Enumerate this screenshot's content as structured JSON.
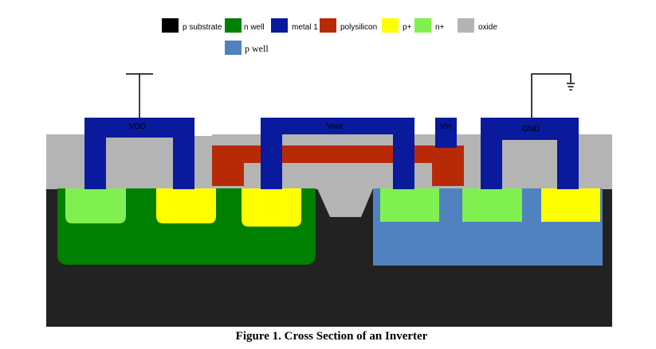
{
  "legend": {
    "items": [
      {
        "key": "p_substrate",
        "label": "p substrate",
        "color": "#000000"
      },
      {
        "key": "n_well",
        "label": "n well",
        "color": "#008000"
      },
      {
        "key": "metal1",
        "label": "metal 1",
        "color": "#0a1a9c"
      },
      {
        "key": "polysilicon",
        "label": "polysilicon",
        "color": "#b82a06"
      },
      {
        "key": "p_plus",
        "label": "p+",
        "color": "#ffff00"
      },
      {
        "key": "n_plus",
        "label": "n+",
        "color": "#80f050"
      },
      {
        "key": "oxide",
        "label": "oxide",
        "color": "#b4b4b4"
      },
      {
        "key": "p_well",
        "label": "p well",
        "color": "#5082c0"
      }
    ]
  },
  "colors": {
    "substrate_fill": "#222222",
    "stroke": "#000000"
  },
  "labels": {
    "vdd": "VDD",
    "vout": "Vout",
    "vin": "Vin",
    "gnd": "GND"
  },
  "caption": "Figure 1.  Cross Section of an Inverter"
}
